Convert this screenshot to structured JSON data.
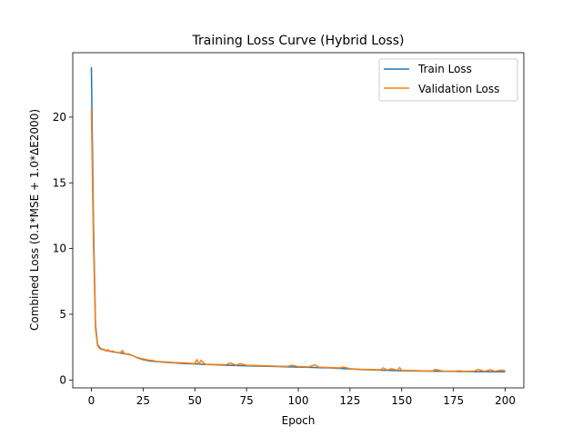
{
  "chart_data": {
    "type": "line",
    "title": "Training Loss Curve (Hybrid Loss)",
    "xlabel": "Epoch",
    "ylabel": "Combined Loss (0.1*MSE + 1.0*ΔE2000)",
    "xlim": [
      -9,
      209
    ],
    "ylim": [
      -0.6,
      24.9
    ],
    "xticks": [
      0,
      25,
      50,
      75,
      100,
      125,
      150,
      175,
      200
    ],
    "yticks": [
      0,
      5,
      10,
      15,
      20
    ],
    "grid": false,
    "legend_position": "upper right",
    "series": [
      {
        "name": "Train Loss",
        "color": "#1f77b4",
        "points": [
          [
            0,
            23.8
          ],
          [
            1,
            12.0
          ],
          [
            2,
            4.2
          ],
          [
            3,
            2.7
          ],
          [
            4,
            2.45
          ],
          [
            5,
            2.35
          ],
          [
            6,
            2.3
          ],
          [
            7,
            2.25
          ],
          [
            8,
            2.22
          ],
          [
            9,
            2.2
          ],
          [
            10,
            2.15
          ],
          [
            12,
            2.1
          ],
          [
            14,
            2.05
          ],
          [
            16,
            2.0
          ],
          [
            18,
            1.95
          ],
          [
            20,
            1.85
          ],
          [
            22,
            1.7
          ],
          [
            25,
            1.55
          ],
          [
            28,
            1.45
          ],
          [
            30,
            1.42
          ],
          [
            35,
            1.35
          ],
          [
            40,
            1.3
          ],
          [
            45,
            1.25
          ],
          [
            50,
            1.22
          ],
          [
            55,
            1.18
          ],
          [
            60,
            1.15
          ],
          [
            65,
            1.12
          ],
          [
            70,
            1.1
          ],
          [
            75,
            1.08
          ],
          [
            80,
            1.06
          ],
          [
            85,
            1.04
          ],
          [
            90,
            1.02
          ],
          [
            95,
            1.0
          ],
          [
            100,
            0.98
          ],
          [
            105,
            0.96
          ],
          [
            110,
            0.94
          ],
          [
            115,
            0.92
          ],
          [
            120,
            0.88
          ],
          [
            125,
            0.84
          ],
          [
            130,
            0.8
          ],
          [
            135,
            0.77
          ],
          [
            140,
            0.75
          ],
          [
            145,
            0.72
          ],
          [
            150,
            0.7
          ],
          [
            155,
            0.69
          ],
          [
            160,
            0.68
          ],
          [
            165,
            0.67
          ],
          [
            170,
            0.66
          ],
          [
            175,
            0.65
          ],
          [
            180,
            0.64
          ],
          [
            185,
            0.63
          ],
          [
            190,
            0.63
          ],
          [
            195,
            0.62
          ],
          [
            200,
            0.62
          ]
        ]
      },
      {
        "name": "Validation Loss",
        "color": "#ff7f0e",
        "points": [
          [
            0,
            20.6
          ],
          [
            1,
            10.5
          ],
          [
            2,
            3.9
          ],
          [
            3,
            2.6
          ],
          [
            4,
            2.4
          ],
          [
            5,
            2.3
          ],
          [
            6,
            2.35
          ],
          [
            7,
            2.2
          ],
          [
            8,
            2.3
          ],
          [
            9,
            2.15
          ],
          [
            10,
            2.2
          ],
          [
            12,
            2.1
          ],
          [
            14,
            2.08
          ],
          [
            15,
            2.25
          ],
          [
            16,
            2.0
          ],
          [
            18,
            1.98
          ],
          [
            20,
            1.85
          ],
          [
            22,
            1.72
          ],
          [
            25,
            1.6
          ],
          [
            28,
            1.5
          ],
          [
            30,
            1.47
          ],
          [
            32,
            1.4
          ],
          [
            35,
            1.38
          ],
          [
            40,
            1.33
          ],
          [
            45,
            1.3
          ],
          [
            50,
            1.25
          ],
          [
            51,
            1.55
          ],
          [
            52,
            1.2
          ],
          [
            53,
            1.5
          ],
          [
            55,
            1.2
          ],
          [
            60,
            1.18
          ],
          [
            65,
            1.15
          ],
          [
            67,
            1.3
          ],
          [
            70,
            1.13
          ],
          [
            72,
            1.25
          ],
          [
            75,
            1.12
          ],
          [
            80,
            1.1
          ],
          [
            85,
            1.08
          ],
          [
            90,
            1.05
          ],
          [
            95,
            1.04
          ],
          [
            97,
            1.12
          ],
          [
            100,
            1.02
          ],
          [
            105,
            1.0
          ],
          [
            108,
            1.15
          ],
          [
            110,
            0.98
          ],
          [
            115,
            0.95
          ],
          [
            120,
            0.92
          ],
          [
            122,
            0.98
          ],
          [
            125,
            0.86
          ],
          [
            130,
            0.82
          ],
          [
            135,
            0.8
          ],
          [
            140,
            0.78
          ],
          [
            141,
            0.92
          ],
          [
            143,
            0.76
          ],
          [
            145,
            0.85
          ],
          [
            148,
            0.74
          ],
          [
            149,
            0.95
          ],
          [
            150,
            0.72
          ],
          [
            155,
            0.72
          ],
          [
            160,
            0.7
          ],
          [
            165,
            0.69
          ],
          [
            166,
            0.8
          ],
          [
            170,
            0.68
          ],
          [
            175,
            0.67
          ],
          [
            178,
            0.7
          ],
          [
            180,
            0.66
          ],
          [
            185,
            0.66
          ],
          [
            187,
            0.8
          ],
          [
            190,
            0.65
          ],
          [
            193,
            0.78
          ],
          [
            195,
            0.66
          ],
          [
            198,
            0.75
          ],
          [
            200,
            0.72
          ]
        ]
      }
    ]
  }
}
